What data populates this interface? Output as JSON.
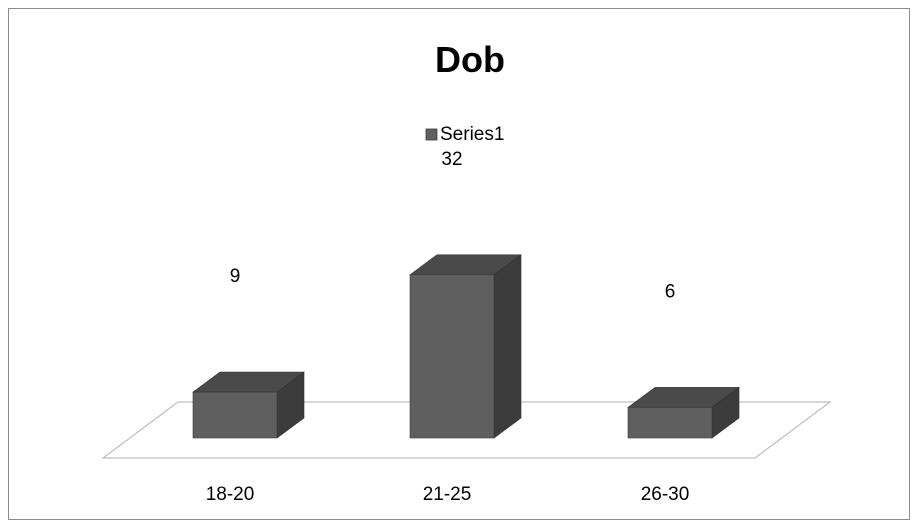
{
  "chart_data": {
    "type": "bar",
    "title": "Dob",
    "categories": [
      "18-20",
      "21-25",
      "26-30"
    ],
    "series": [
      {
        "name": "Series1",
        "values": [
          9,
          32,
          6
        ]
      }
    ],
    "legend_position": "top",
    "grid": false,
    "style": "3d-column",
    "colors": {
      "front": "#5f5f5f",
      "top": "#4a4a4a",
      "side": "#3c3c3c",
      "floor_stroke": "#bdbdbd"
    }
  }
}
